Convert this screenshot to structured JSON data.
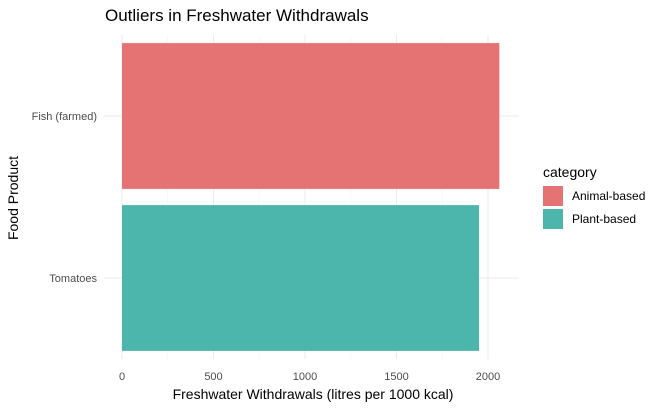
{
  "chart_data": {
    "type": "bar",
    "orientation": "horizontal",
    "title": "Outliers in Freshwater Withdrawals",
    "xlabel": "Freshwater Withdrawals (litres per 1000 kcal)",
    "ylabel": "Food Product",
    "categories": [
      "Fish (farmed)",
      "Tomatoes"
    ],
    "values": [
      2062,
      1951
    ],
    "bar_categories": [
      "Animal-based",
      "Plant-based"
    ],
    "xlim": [
      0,
      2200
    ],
    "xticks": [
      0,
      500,
      1000,
      1500,
      2000
    ],
    "grid": true,
    "legend": {
      "title": "category",
      "placement": "right",
      "entries": [
        {
          "label": "Animal-based",
          "color": "#e57373"
        },
        {
          "label": "Plant-based",
          "color": "#4db6ac"
        }
      ]
    }
  }
}
